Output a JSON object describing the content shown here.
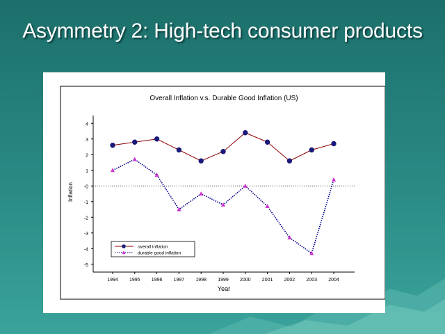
{
  "slide": {
    "title": "Asymmetry 2: High-tech consumer products"
  },
  "chart_data": {
    "type": "line",
    "title": "Overall Inflation v.s. Durable Good Inflation (US)",
    "xlabel": "Year",
    "ylabel": "Inflation",
    "categories": [
      "1994",
      "1995",
      "1996",
      "1997",
      "1998",
      "1999",
      "2000",
      "2001",
      "2002",
      "2003",
      "2004"
    ],
    "yticks": [
      "4",
      "3",
      "2",
      "1",
      "-0",
      "-1",
      "-2",
      "-3",
      "-4",
      "-5"
    ],
    "ylim": [
      -5.5,
      4.5
    ],
    "reference_line": 0,
    "series": [
      {
        "name": "overall inflation",
        "color": "#8b0000",
        "marker": "circle",
        "marker_color": "#1a1a7a",
        "line_style": "solid",
        "values": [
          2.6,
          2.8,
          3.0,
          2.3,
          1.6,
          2.2,
          3.4,
          2.8,
          1.6,
          2.3,
          2.7
        ]
      },
      {
        "name": "durable good inflation",
        "color": "#00008b",
        "marker": "triangle",
        "marker_color": "#cc33cc",
        "line_style": "dotted",
        "values": [
          1.0,
          1.7,
          0.7,
          -1.5,
          -0.5,
          -1.2,
          0.0,
          -1.3,
          -3.3,
          -4.3,
          0.4
        ]
      }
    ],
    "legend_position": "bottom-left"
  },
  "colors": {
    "background": "#1c6f6b",
    "title_text": "#ffffff"
  }
}
